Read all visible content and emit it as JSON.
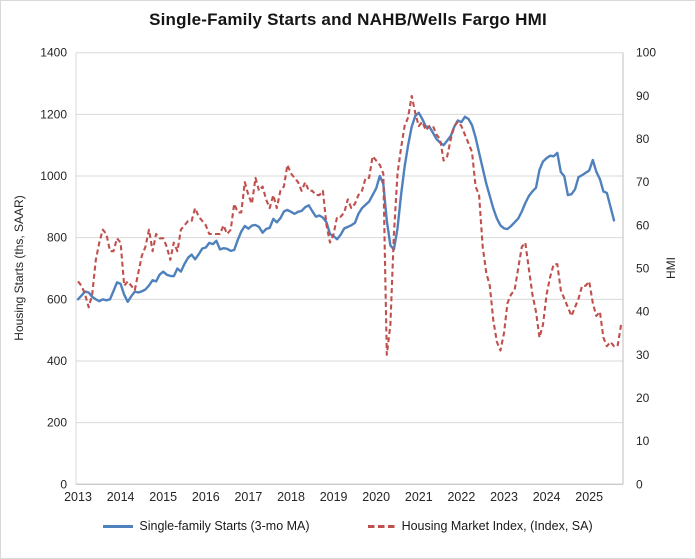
{
  "window": {
    "background": "#ffffff",
    "border_color": "#d9d9d9"
  },
  "chart_data": {
    "type": "line",
    "title": "Single-Family Starts and NAHB/Wells Fargo HMI",
    "grid": true,
    "legend_position": "bottom",
    "frequency": "monthly",
    "x_start": "2013-01",
    "left_axis": {
      "label": "Housing Starts (ths, SAAR)",
      "min": 0,
      "max": 1400,
      "tick_step": 200,
      "ticks": [
        "0",
        "200",
        "400",
        "600",
        "800",
        "1000",
        "1200",
        "1400"
      ]
    },
    "right_axis": {
      "label": "HMI",
      "min": 0,
      "max": 100,
      "tick_step": 10,
      "ticks": [
        "0",
        "10",
        "20",
        "30",
        "40",
        "50",
        "60",
        "70",
        "80",
        "90",
        "100"
      ]
    },
    "x_axis": {
      "tick_labels": [
        "2013",
        "2014",
        "2015",
        "2016",
        "2017",
        "2018",
        "2019",
        "2020",
        "2021",
        "2022",
        "2023",
        "2024",
        "2025"
      ]
    },
    "series": [
      {
        "name": "Single-family Starts (3-mo MA)",
        "axis": "left",
        "color": "#4F81BD",
        "style": "solid",
        "start": "2013-01",
        "end": "2025-08",
        "values": [
          600,
          612,
          625,
          622,
          608,
          600,
          594,
          600,
          597,
          600,
          627,
          655,
          650,
          615,
          592,
          610,
          625,
          622,
          626,
          632,
          645,
          662,
          658,
          680,
          690,
          680,
          676,
          675,
          700,
          690,
          715,
          735,
          745,
          730,
          746,
          765,
          768,
          783,
          779,
          790,
          762,
          766,
          764,
          757,
          760,
          793,
          820,
          838,
          829,
          839,
          841,
          835,
          816,
          828,
          832,
          861,
          850,
          863,
          885,
          890,
          884,
          877,
          884,
          887,
          899,
          905,
          886,
          868,
          872,
          865,
          850,
          812,
          805,
          795,
          810,
          830,
          835,
          840,
          848,
          877,
          896,
          907,
          917,
          938,
          960,
          1000,
          975,
          855,
          775,
          762,
          830,
          940,
          1030,
          1100,
          1160,
          1195,
          1205,
          1185,
          1160,
          1160,
          1140,
          1120,
          1108,
          1100,
          1115,
          1130,
          1160,
          1180,
          1175,
          1192,
          1185,
          1165,
          1125,
          1075,
          1025,
          975,
          935,
          895,
          862,
          840,
          830,
          828,
          838,
          850,
          862,
          885,
          912,
          935,
          950,
          962,
          1020,
          1047,
          1058,
          1066,
          1064,
          1075,
          1013,
          999,
          938,
          941,
          957,
          996,
          1003,
          1010,
          1018,
          1052,
          1014,
          990,
          950,
          945,
          900,
          856
        ]
      },
      {
        "name": "Housing Market Index, (Index, SA)",
        "axis": "right",
        "color": "#C0504D",
        "style": "dashed",
        "start": "2013-01",
        "end": "2025-10",
        "values": [
          47,
          46,
          44,
          41,
          44,
          52,
          56,
          59,
          58,
          54,
          54,
          57,
          56,
          46,
          47,
          46,
          45,
          49,
          53,
          55,
          59,
          54,
          58,
          57,
          57,
          55,
          52,
          56,
          54,
          59,
          60,
          61,
          61,
          64,
          62,
          61,
          60,
          58,
          58,
          58,
          58,
          60,
          58,
          59,
          65,
          63,
          63,
          70,
          67,
          65,
          71,
          68,
          69,
          66,
          64,
          67,
          64,
          68,
          69,
          74,
          72,
          71,
          70,
          68,
          70,
          68,
          68,
          67,
          67,
          68,
          60,
          56,
          58,
          62,
          62,
          63,
          66,
          64,
          65,
          67,
          68,
          71,
          71,
          76,
          75,
          74,
          72,
          30,
          37,
          58,
          72,
          78,
          83,
          85,
          90,
          86,
          83,
          84,
          82,
          83,
          83,
          81,
          80,
          75,
          76,
          80,
          83,
          84,
          83,
          81,
          79,
          77,
          69,
          67,
          55,
          49,
          46,
          38,
          33,
          31,
          35,
          42,
          44,
          45,
          50,
          55,
          56,
          50,
          44,
          40,
          34,
          37,
          44,
          48,
          51,
          51,
          45,
          43,
          41,
          39,
          41,
          43,
          46,
          46,
          47,
          42,
          39,
          40,
          34,
          32,
          33,
          32,
          32,
          37
        ]
      }
    ],
    "style": {
      "gridline_color": "#d9d9d9",
      "axis_line_color": "#bfbfbf",
      "tick_label_color": "#262626"
    }
  }
}
